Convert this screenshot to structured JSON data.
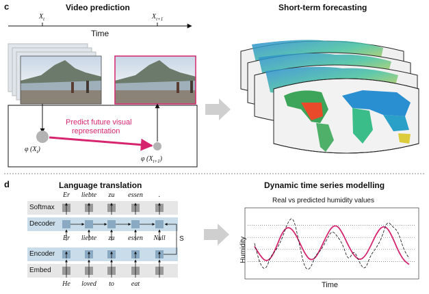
{
  "panel_c": {
    "letter": "c",
    "video": {
      "title": "Video prediction",
      "time_label": "Time",
      "x_t": "X",
      "x_t_sub": "t",
      "x_t1": "X",
      "x_t1_sub": "t+1",
      "predict_label_1": "Predict future visual",
      "predict_label_2": "representation",
      "phi_t": "φ (X",
      "phi_t_sub": "t",
      "phi_t1": "φ (X",
      "phi_t1_sub": "t+1",
      "phi_close": ")"
    },
    "forecast": {
      "title": "Short-term forecasting"
    }
  },
  "panel_d": {
    "letter": "d",
    "translation": {
      "title": "Language translation",
      "rows": [
        "Softmax",
        "Decoder",
        "Encoder",
        "Embed"
      ],
      "output_words": [
        "Er",
        "liebte",
        "zu",
        "essen",
        "."
      ],
      "decoder_inputs": [
        "Er",
        "liebte",
        "zu",
        "essen",
        "Null"
      ],
      "input_words": [
        "He",
        "loved",
        "to",
        "eat",
        ""
      ],
      "state_label": "S"
    },
    "dynamic": {
      "title": "Dynamic time series modelling",
      "subtitle": "Real vs predicted humidity values",
      "ylabel": "Humidity",
      "xlabel": "Time"
    }
  },
  "colors": {
    "accent": "#d6246e",
    "row_band": "#c9dce9",
    "row_gray": "#e6e6e6",
    "cell": "#8aa9c2",
    "cell_gray": "#9a9a9a",
    "arrow_gray": "#cfcfcf"
  },
  "chart_data": {
    "type": "line",
    "title": "Real vs predicted humidity values",
    "xlabel": "Time",
    "ylabel": "Humidity",
    "grid": "horizontal dotted",
    "series": [
      {
        "style": "solid-magenta",
        "values": [
          0.45,
          0.3,
          0.2,
          0.25,
          0.45,
          0.68,
          0.78,
          0.72,
          0.55,
          0.35,
          0.22,
          0.25,
          0.42,
          0.62,
          0.78,
          0.8,
          0.66,
          0.46,
          0.3,
          0.22,
          0.28,
          0.45,
          0.65,
          0.78,
          0.77,
          0.6,
          0.38,
          0.22,
          0.15
        ]
      },
      {
        "style": "dashed-black",
        "values": [
          0.5,
          0.15,
          0.05,
          0.3,
          0.4,
          0.58,
          0.85,
          0.95,
          0.55,
          0.1,
          0.05,
          0.3,
          0.38,
          0.55,
          0.72,
          0.62,
          0.48,
          0.2,
          0.4,
          0.18,
          0.05,
          0.3,
          0.42,
          0.58,
          0.88,
          0.78,
          0.7,
          0.4,
          0.25
        ]
      }
    ]
  }
}
